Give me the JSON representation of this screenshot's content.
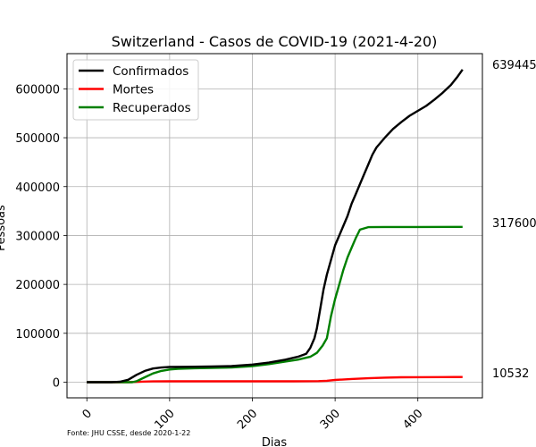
{
  "chart_data": {
    "type": "line",
    "title": "Switzerland - Casos de COVID-19 (2021-4-20)",
    "xlabel": "Dias",
    "ylabel": "Pessoas",
    "xlim": [
      -24,
      478
    ],
    "ylim": [
      -32000,
      672000
    ],
    "x_ticks": [
      0,
      100,
      200,
      300,
      400
    ],
    "x_tick_labels": [
      "0",
      "100",
      "200",
      "300",
      "400"
    ],
    "y_ticks": [
      0,
      100000,
      200000,
      300000,
      400000,
      500000,
      600000
    ],
    "y_tick_labels": [
      "0",
      "100000",
      "200000",
      "300000",
      "400000",
      "500000",
      "600000"
    ],
    "grid": true,
    "legend_position": "top-left",
    "source_note": "Fonte: JHU CSSE, desde 2020-1-22",
    "series": [
      {
        "name": "Confirmados",
        "color": "#000000",
        "end_label": "639445",
        "points": [
          [
            0,
            0
          ],
          [
            30,
            0
          ],
          [
            40,
            1000
          ],
          [
            50,
            5000
          ],
          [
            60,
            15000
          ],
          [
            70,
            23000
          ],
          [
            80,
            28000
          ],
          [
            90,
            30000
          ],
          [
            100,
            31000
          ],
          [
            120,
            31500
          ],
          [
            150,
            32000
          ],
          [
            175,
            33000
          ],
          [
            200,
            36000
          ],
          [
            220,
            40000
          ],
          [
            240,
            46000
          ],
          [
            255,
            52000
          ],
          [
            265,
            58000
          ],
          [
            270,
            70000
          ],
          [
            275,
            90000
          ],
          [
            278,
            110000
          ],
          [
            280,
            130000
          ],
          [
            283,
            160000
          ],
          [
            286,
            190000
          ],
          [
            290,
            220000
          ],
          [
            295,
            250000
          ],
          [
            300,
            280000
          ],
          [
            305,
            300000
          ],
          [
            310,
            320000
          ],
          [
            315,
            340000
          ],
          [
            320,
            365000
          ],
          [
            325,
            385000
          ],
          [
            330,
            405000
          ],
          [
            335,
            425000
          ],
          [
            340,
            445000
          ],
          [
            345,
            465000
          ],
          [
            350,
            480000
          ],
          [
            360,
            500000
          ],
          [
            370,
            518000
          ],
          [
            380,
            532000
          ],
          [
            390,
            545000
          ],
          [
            400,
            555000
          ],
          [
            410,
            565000
          ],
          [
            420,
            578000
          ],
          [
            430,
            592000
          ],
          [
            440,
            608000
          ],
          [
            448,
            625000
          ],
          [
            454,
            639445
          ]
        ]
      },
      {
        "name": "Mortes",
        "color": "#ff0000",
        "end_label": "10532",
        "points": [
          [
            0,
            0
          ],
          [
            50,
            0
          ],
          [
            60,
            500
          ],
          [
            70,
            1200
          ],
          [
            80,
            1600
          ],
          [
            100,
            1750
          ],
          [
            150,
            1800
          ],
          [
            200,
            1850
          ],
          [
            250,
            1900
          ],
          [
            280,
            2200
          ],
          [
            290,
            3000
          ],
          [
            300,
            4500
          ],
          [
            320,
            6500
          ],
          [
            340,
            8000
          ],
          [
            360,
            9300
          ],
          [
            380,
            10000
          ],
          [
            400,
            10300
          ],
          [
            430,
            10450
          ],
          [
            454,
            10532
          ]
        ]
      },
      {
        "name": "Recuperados",
        "color": "#008000",
        "end_label": "317600",
        "points": [
          [
            0,
            0
          ],
          [
            55,
            0
          ],
          [
            60,
            2000
          ],
          [
            70,
            10000
          ],
          [
            80,
            18000
          ],
          [
            90,
            23000
          ],
          [
            100,
            26000
          ],
          [
            110,
            27500
          ],
          [
            130,
            28500
          ],
          [
            150,
            29000
          ],
          [
            175,
            30000
          ],
          [
            200,
            33000
          ],
          [
            220,
            37000
          ],
          [
            240,
            42000
          ],
          [
            255,
            46000
          ],
          [
            270,
            52000
          ],
          [
            278,
            60000
          ],
          [
            285,
            75000
          ],
          [
            290,
            90000
          ],
          [
            295,
            135000
          ],
          [
            300,
            170000
          ],
          [
            305,
            200000
          ],
          [
            310,
            230000
          ],
          [
            315,
            255000
          ],
          [
            320,
            275000
          ],
          [
            325,
            295000
          ],
          [
            330,
            312000
          ],
          [
            340,
            317000
          ],
          [
            360,
            317400
          ],
          [
            400,
            317500
          ],
          [
            454,
            317600
          ]
        ]
      }
    ]
  }
}
